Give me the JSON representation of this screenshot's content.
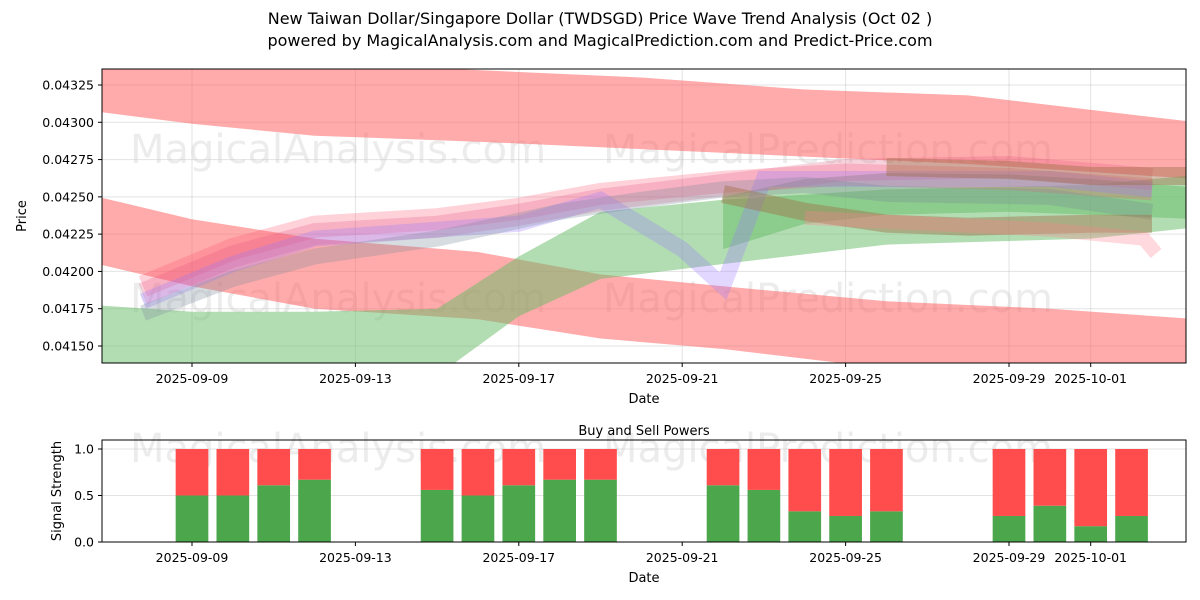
{
  "title_line1": "New Taiwan Dollar/Singapore Dollar (TWDSGD) Price Wave Trend Analysis (Oct 02 )",
  "title_line2": "powered by MagicalAnalysis.com and MagicalPrediction.com and Predict-Price.com",
  "watermarks": [
    "MagicalAnalysis.com",
    "MagicalPrediction.com"
  ],
  "chart_data": [
    {
      "type": "area",
      "title": "",
      "xlabel": "Date",
      "ylabel": "Price",
      "x_range": [
        "2025-09-06",
        "2025-10-04"
      ],
      "ylim": [
        0.04138,
        0.04335
      ],
      "yticks": [
        0.0415,
        0.04175,
        0.042,
        0.04225,
        0.0425,
        0.04275,
        0.043,
        0.04325
      ],
      "ytick_labels": [
        "0.04150",
        "0.04175",
        "0.04200",
        "0.04225",
        "0.04250",
        "0.04275",
        "0.04300",
        "0.04325"
      ],
      "xticks": [
        "2025-09-09",
        "2025-09-13",
        "2025-09-17",
        "2025-09-21",
        "2025-09-25",
        "2025-09-29",
        "2025-10-01"
      ],
      "grid": true,
      "bands": [
        {
          "name": "upper-red-band",
          "color": "#ff6666",
          "opacity": 0.55,
          "x": [
            "2025-09-06.7",
            "2025-09-09",
            "2025-09-12",
            "2025-09-16",
            "2025-09-20",
            "2025-09-24",
            "2025-09-28",
            "2025-10-03.6"
          ],
          "lower": [
            0.04307,
            0.04299,
            0.04291,
            0.04287,
            0.04282,
            0.04277,
            0.04272,
            0.04262
          ],
          "upper": [
            0.0434,
            0.0434,
            0.0434,
            0.04335,
            0.0433,
            0.04322,
            0.04318,
            0.043
          ]
        },
        {
          "name": "lower-red-band",
          "color": "#ff6666",
          "opacity": 0.55,
          "x": [
            "2025-09-06.7",
            "2025-09-09",
            "2025-09-12",
            "2025-09-16",
            "2025-09-19",
            "2025-09-22",
            "2025-09-26",
            "2025-09-30",
            "2025-10-03.6"
          ],
          "lower": [
            0.04205,
            0.0419,
            0.04175,
            0.04168,
            0.04155,
            0.04148,
            0.04135,
            0.0413,
            0.0412
          ],
          "upper": [
            0.0425,
            0.04235,
            0.04222,
            0.04213,
            0.04198,
            0.0419,
            0.0418,
            0.04175,
            0.04168
          ]
        },
        {
          "name": "green-band-low",
          "color": "#66bb66",
          "opacity": 0.5,
          "x": [
            "2025-09-06.3",
            "2025-09-09",
            "2025-09-12",
            "2025-09-15",
            "2025-09-17",
            "2025-09-19",
            "2025-09-22",
            "2025-09-26",
            "2025-10-01",
            "2025-10-03.7"
          ],
          "lower": [
            0.0413,
            0.04125,
            0.04125,
            0.0413,
            0.0417,
            0.04195,
            0.04205,
            0.04218,
            0.04222,
            0.0423
          ],
          "upper": [
            0.04178,
            0.04173,
            0.04173,
            0.04175,
            0.0421,
            0.0424,
            0.04248,
            0.04255,
            0.04258,
            0.04265
          ]
        },
        {
          "name": "green-band-high",
          "color": "#66bb66",
          "opacity": 0.5,
          "x": [
            "2025-09-22",
            "2025-09-24",
            "2025-09-26",
            "2025-09-29",
            "2025-10-01",
            "2025-10-03.7"
          ],
          "lower": [
            0.04215,
            0.04232,
            0.04238,
            0.0424,
            0.04238,
            0.04235
          ],
          "upper": [
            0.0425,
            0.04262,
            0.04266,
            0.04265,
            0.04262,
            0.04256
          ]
        }
      ],
      "wave_lines": [
        {
          "color": "#ff4d6a",
          "opacity": 0.25,
          "width": 22,
          "x": [
            "2025-09-07.8",
            "2025-09-10",
            "2025-09-12",
            "2025-09-15",
            "2025-09-17",
            "2025-09-19",
            "2025-09-22",
            "2025-09-25",
            "2025-09-29",
            "2025-10-02.5"
          ],
          "y": [
            0.0419,
            0.04215,
            0.0423,
            0.04235,
            0.04242,
            0.04252,
            0.0426,
            0.04265,
            0.04262,
            0.04255
          ]
        },
        {
          "color": "#e0507a",
          "opacity": 0.25,
          "width": 22,
          "x": [
            "2025-09-07.8",
            "2025-09-10",
            "2025-09-12",
            "2025-09-15",
            "2025-09-17",
            "2025-09-19",
            "2025-09-22",
            "2025-09-25",
            "2025-09-29",
            "2025-10-02.5"
          ],
          "y": [
            0.04185,
            0.0421,
            0.04225,
            0.0423,
            0.04238,
            0.04248,
            0.04258,
            0.04268,
            0.0427,
            0.04262
          ]
        },
        {
          "color": "#9b7bff",
          "opacity": 0.3,
          "width": 16,
          "x": [
            "2025-09-07.8",
            "2025-09-10",
            "2025-09-12",
            "2025-09-15",
            "2025-09-17",
            "2025-09-19",
            "2025-09-21",
            "2025-09-22",
            "2025-09-23",
            "2025-09-26",
            "2025-09-30",
            "2025-10-02.5"
          ],
          "y": [
            0.0418,
            0.04205,
            0.04222,
            0.04228,
            0.04232,
            0.04248,
            0.04215,
            0.0419,
            0.04262,
            0.04262,
            0.04262,
            0.04255
          ]
        },
        {
          "color": "#7a8a9a",
          "opacity": 0.3,
          "width": 16,
          "x": [
            "2025-09-07.8",
            "2025-09-10",
            "2025-09-12",
            "2025-09-15",
            "2025-09-18",
            "2025-09-20",
            "2025-09-22",
            "2025-09-24",
            "2025-09-26",
            "2025-09-30",
            "2025-10-02.5"
          ],
          "y": [
            0.04172,
            0.04195,
            0.0421,
            0.04222,
            0.0424,
            0.04248,
            0.04255,
            0.04258,
            0.04252,
            0.0425,
            0.0424
          ]
        },
        {
          "color": "#a0704a",
          "opacity": 0.45,
          "width": 18,
          "x": [
            "2025-09-22",
            "2025-09-24",
            "2025-09-26",
            "2025-09-28",
            "2025-10-01",
            "2025-10-02.5"
          ],
          "y": [
            0.04252,
            0.0424,
            0.04232,
            0.0423,
            0.04232,
            0.04232
          ]
        },
        {
          "color": "#a0704a",
          "opacity": 0.45,
          "width": 18,
          "x": [
            "2025-09-26",
            "2025-09-29",
            "2025-10-01",
            "2025-10-03.7"
          ],
          "y": [
            0.0427,
            0.04268,
            0.04264,
            0.04264
          ]
        },
        {
          "color": "#ff8090",
          "opacity": 0.3,
          "width": 14,
          "x": [
            "2025-09-24",
            "2025-09-27",
            "2025-09-30",
            "2025-10-02.3",
            "2025-10-02.6"
          ],
          "y": [
            0.04236,
            0.04232,
            0.04228,
            0.04222,
            0.04212
          ]
        }
      ]
    },
    {
      "type": "bar",
      "title": "Buy and Sell Powers",
      "xlabel": "Date",
      "ylabel": "Signal Strength",
      "ylim": [
        0,
        1.05
      ],
      "yticks": [
        0.0,
        0.5,
        1.0
      ],
      "ytick_labels": [
        "0.0",
        "0.5",
        "1.0"
      ],
      "xticks": [
        "2025-09-09",
        "2025-09-13",
        "2025-09-17",
        "2025-09-21",
        "2025-09-25",
        "2025-09-29",
        "2025-10-01"
      ],
      "grid": true,
      "categories": [
        "2025-09-09",
        "2025-09-10",
        "2025-09-11",
        "2025-09-12",
        "2025-09-15",
        "2025-09-16",
        "2025-09-17",
        "2025-09-18",
        "2025-09-19",
        "2025-09-22",
        "2025-09-23",
        "2025-09-24",
        "2025-09-25",
        "2025-09-26",
        "2025-09-29",
        "2025-09-30",
        "2025-10-01",
        "2025-10-02"
      ],
      "series": [
        {
          "name": "Buy",
          "color": "#4ca64c",
          "values": [
            0.5,
            0.5,
            0.61,
            0.67,
            0.56,
            0.5,
            0.61,
            0.67,
            0.67,
            0.61,
            0.56,
            0.33,
            0.28,
            0.33,
            0.28,
            0.39,
            0.17,
            0.28
          ]
        },
        {
          "name": "Sell",
          "color": "#ff4c4c",
          "values": [
            0.5,
            0.5,
            0.39,
            0.33,
            0.44,
            0.5,
            0.39,
            0.33,
            0.33,
            0.39,
            0.44,
            0.67,
            0.72,
            0.67,
            0.72,
            0.61,
            0.83,
            0.72
          ]
        }
      ]
    }
  ]
}
